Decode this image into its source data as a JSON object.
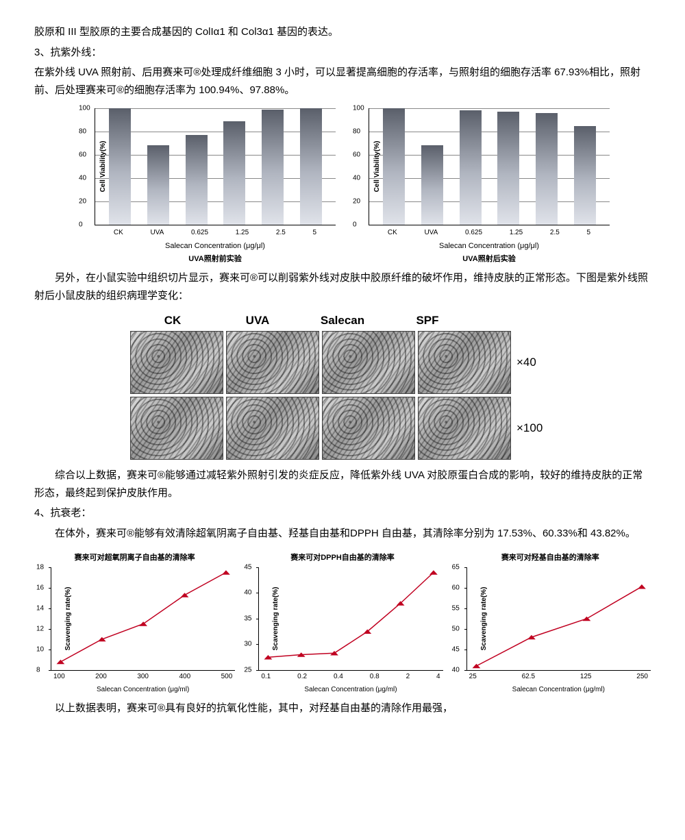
{
  "text": {
    "p1": "胶原和 III 型胶原的主要合成基因的 ColIα1 和 Col3α1 基因的表达。",
    "h3": "3、抗紫外线：",
    "p3": "在紫外线 UVA 照射前、后用赛来可®处理成纤维细胞 3 小时，可以显著提高细胞的存活率，与照射组的细胞存活率 67.93%相比，照射前、后处理赛来可®的细胞存活率为 100.94%、97.88%。",
    "p4": "另外，在小鼠实验中组织切片显示，赛来可®可以削弱紫外线对皮肤中胶原纤维的破坏作用，维持皮肤的正常形态。下图是紫外线照射后小鼠皮肤的组织病理学变化：",
    "p5": "综合以上数据，赛来可®能够通过减轻紫外照射引发的炎症反应，降低紫外线 UVA 对胶原蛋白合成的影响，较好的维持皮肤的正常形态，最终起到保护皮肤作用。",
    "h4": "4、抗衰老：",
    "p6": "在体外，赛来可®能够有效清除超氧阴离子自由基、羟基自由基和DPPH 自由基，其清除率分别为 17.53%、60.33%和 43.82%。",
    "p7": "以上数据表明，赛来可®具有良好的抗氧化性能，其中，对羟基自由基的清除作用最强，"
  },
  "bar_charts": {
    "ylabel": "Cell Viability(%)",
    "ylim": [
      0,
      100
    ],
    "ystep": 20,
    "categories": [
      "CK",
      "UVA",
      "0.625",
      "1.25",
      "2.5",
      "5"
    ],
    "xlabel": "Salecan Concentration (μg/μl)",
    "bar_gradient_top": "#5a5f6a",
    "bar_gradient_bottom": "#e0e3ea",
    "grid_color": "#888",
    "left": {
      "values": [
        100,
        68,
        77,
        89,
        99,
        100
      ],
      "subcaption": "UVA照射前实验"
    },
    "right": {
      "values": [
        100,
        68,
        98,
        97,
        96,
        85
      ],
      "subcaption": "UVA照射后实验"
    }
  },
  "histology": {
    "columns": [
      "CK",
      "UVA",
      "Salecan",
      "SPF"
    ],
    "magnifications": [
      "×40",
      "×100"
    ]
  },
  "line_charts": {
    "shared_ylabel": "Scavenging rate(%)",
    "marker_color": "#c00020",
    "line_color": "#c00020",
    "line_width": 1.5,
    "marker_size": 4,
    "charts": [
      {
        "title": "赛来可对超氧阴离子自由基的清除率",
        "xlabel": "Salecan Concentration (μg/ml)",
        "x": [
          100,
          200,
          300,
          400,
          500
        ],
        "x_ticks": [
          "100",
          "200",
          "300",
          "400",
          "500"
        ],
        "y": [
          8.8,
          11.0,
          12.5,
          15.3,
          17.5
        ],
        "ylim": [
          8,
          18
        ],
        "ystep": 2
      },
      {
        "title": "赛来可对DPPH自由基的清除率",
        "xlabel": "Salecan Concentration (μg/ml)",
        "x": [
          0.1,
          0.2,
          0.4,
          0.8,
          2,
          4
        ],
        "x_ticks": [
          "0.1",
          "0.2",
          "0.4",
          "0.8",
          "2",
          "4"
        ],
        "y": [
          27.5,
          28,
          28.3,
          32.5,
          38,
          44
        ],
        "ylim": [
          25,
          45
        ],
        "ystep": 5
      },
      {
        "title": "赛来可对羟基自由基的清除率",
        "xlabel": "Salecan Concentration (μg/ml)",
        "x": [
          25,
          62.5,
          125,
          250
        ],
        "x_ticks": [
          "25",
          "62.5",
          "125",
          "250"
        ],
        "y": [
          41,
          48,
          52.5,
          60.3
        ],
        "ylim": [
          40,
          65
        ],
        "ystep": 5
      }
    ]
  }
}
